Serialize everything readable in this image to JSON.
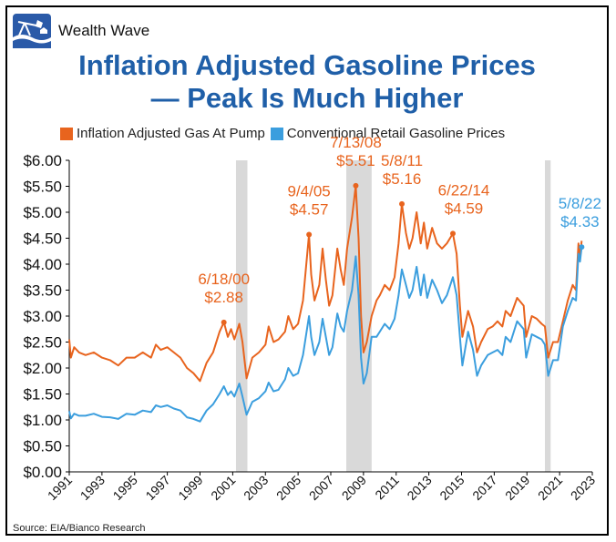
{
  "brand": {
    "name": "Wealth Wave",
    "logo_icon": "oil-pump-logo-icon"
  },
  "header": {
    "title_line1": "Inflation Adjusted Gasoline Prices",
    "title_line2": "— Peak Is Much Higher"
  },
  "source": "Source: EIA/Bianco Research",
  "colors": {
    "adjusted": "#e8641e",
    "conventional": "#3b9ede",
    "title": "#1f5fa8",
    "recession": "#d9d9d9"
  },
  "chart_data": {
    "type": "line",
    "title": "Inflation Adjusted Gasoline Prices — Peak Is Much Higher",
    "xlabel": "",
    "ylabel": "",
    "xlim": [
      1991,
      2023
    ],
    "ylim": [
      0,
      6
    ],
    "x_ticks": [
      "1991",
      "1993",
      "1995",
      "1997",
      "1999",
      "2001",
      "2003",
      "2005",
      "2007",
      "2009",
      "2011",
      "2013",
      "2015",
      "2017",
      "2019",
      "2021",
      "2023"
    ],
    "y_ticks": [
      "$0.00",
      "$0.50",
      "$1.00",
      "$1.50",
      "$2.00",
      "$2.50",
      "$3.00",
      "$3.50",
      "$4.00",
      "$4.50",
      "$5.00",
      "$5.50",
      "$6.00"
    ],
    "grid": false,
    "legend_position": "top",
    "recessions": [
      [
        2001.2,
        2001.9
      ],
      [
        2007.95,
        2009.5
      ],
      [
        2020.1,
        2020.45
      ]
    ],
    "series": [
      {
        "name": "Inflation Adjusted Gas At Pump",
        "color": "#e8641e",
        "points": [
          [
            1991.0,
            2.55
          ],
          [
            1991.1,
            2.2
          ],
          [
            1991.3,
            2.4
          ],
          [
            1991.6,
            2.3
          ],
          [
            1992.0,
            2.25
          ],
          [
            1992.5,
            2.3
          ],
          [
            1993.0,
            2.2
          ],
          [
            1993.5,
            2.15
          ],
          [
            1994.0,
            2.05
          ],
          [
            1994.5,
            2.2
          ],
          [
            1995.0,
            2.2
          ],
          [
            1995.5,
            2.3
          ],
          [
            1996.0,
            2.2
          ],
          [
            1996.3,
            2.45
          ],
          [
            1996.6,
            2.35
          ],
          [
            1997.0,
            2.4
          ],
          [
            1997.4,
            2.3
          ],
          [
            1997.8,
            2.2
          ],
          [
            1998.2,
            2.0
          ],
          [
            1998.6,
            1.9
          ],
          [
            1999.0,
            1.75
          ],
          [
            1999.4,
            2.1
          ],
          [
            1999.8,
            2.3
          ],
          [
            2000.2,
            2.7
          ],
          [
            2000.46,
            2.88
          ],
          [
            2000.7,
            2.6
          ],
          [
            2000.9,
            2.75
          ],
          [
            2001.1,
            2.55
          ],
          [
            2001.4,
            2.85
          ],
          [
            2001.6,
            2.5
          ],
          [
            2001.85,
            1.8
          ],
          [
            2002.2,
            2.2
          ],
          [
            2002.6,
            2.3
          ],
          [
            2003.0,
            2.45
          ],
          [
            2003.2,
            2.8
          ],
          [
            2003.5,
            2.5
          ],
          [
            2003.8,
            2.55
          ],
          [
            2004.2,
            2.7
          ],
          [
            2004.4,
            3.0
          ],
          [
            2004.7,
            2.75
          ],
          [
            2005.0,
            2.85
          ],
          [
            2005.3,
            3.3
          ],
          [
            2005.67,
            4.57
          ],
          [
            2005.8,
            3.8
          ],
          [
            2006.0,
            3.3
          ],
          [
            2006.3,
            3.6
          ],
          [
            2006.5,
            4.3
          ],
          [
            2006.7,
            3.7
          ],
          [
            2006.9,
            3.2
          ],
          [
            2007.1,
            3.4
          ],
          [
            2007.4,
            4.3
          ],
          [
            2007.6,
            3.9
          ],
          [
            2007.8,
            3.6
          ],
          [
            2008.0,
            4.3
          ],
          [
            2008.3,
            4.9
          ],
          [
            2008.53,
            5.51
          ],
          [
            2008.7,
            4.5
          ],
          [
            2008.85,
            3.0
          ],
          [
            2009.0,
            2.3
          ],
          [
            2009.2,
            2.5
          ],
          [
            2009.5,
            3.0
          ],
          [
            2009.8,
            3.3
          ],
          [
            2010.0,
            3.4
          ],
          [
            2010.3,
            3.6
          ],
          [
            2010.6,
            3.5
          ],
          [
            2010.9,
            3.75
          ],
          [
            2011.15,
            4.4
          ],
          [
            2011.35,
            5.16
          ],
          [
            2011.6,
            4.6
          ],
          [
            2011.8,
            4.3
          ],
          [
            2012.0,
            4.5
          ],
          [
            2012.25,
            5.0
          ],
          [
            2012.5,
            4.4
          ],
          [
            2012.7,
            4.8
          ],
          [
            2012.9,
            4.3
          ],
          [
            2013.2,
            4.7
          ],
          [
            2013.5,
            4.4
          ],
          [
            2013.8,
            4.3
          ],
          [
            2014.1,
            4.4
          ],
          [
            2014.47,
            4.59
          ],
          [
            2014.7,
            4.2
          ],
          [
            2014.9,
            3.2
          ],
          [
            2015.05,
            2.6
          ],
          [
            2015.4,
            3.1
          ],
          [
            2015.7,
            2.8
          ],
          [
            2015.95,
            2.3
          ],
          [
            2016.2,
            2.5
          ],
          [
            2016.6,
            2.75
          ],
          [
            2016.9,
            2.8
          ],
          [
            2017.2,
            2.9
          ],
          [
            2017.5,
            2.8
          ],
          [
            2017.7,
            3.1
          ],
          [
            2018.0,
            3.0
          ],
          [
            2018.4,
            3.35
          ],
          [
            2018.8,
            3.2
          ],
          [
            2018.95,
            2.6
          ],
          [
            2019.3,
            3.0
          ],
          [
            2019.6,
            2.95
          ],
          [
            2019.9,
            2.85
          ],
          [
            2020.1,
            2.8
          ],
          [
            2020.3,
            2.2
          ],
          [
            2020.6,
            2.5
          ],
          [
            2020.9,
            2.5
          ],
          [
            2021.2,
            2.9
          ],
          [
            2021.5,
            3.3
          ],
          [
            2021.8,
            3.6
          ],
          [
            2022.0,
            3.5
          ],
          [
            2022.15,
            4.4
          ],
          [
            2022.25,
            4.1
          ],
          [
            2022.35,
            4.45
          ]
        ]
      },
      {
        "name": "Conventional Retail Gasoline Prices",
        "color": "#3b9ede",
        "points": [
          [
            1991.0,
            1.17
          ],
          [
            1991.1,
            1.03
          ],
          [
            1991.3,
            1.12
          ],
          [
            1991.6,
            1.08
          ],
          [
            1992.0,
            1.08
          ],
          [
            1992.5,
            1.12
          ],
          [
            1993.0,
            1.06
          ],
          [
            1993.5,
            1.05
          ],
          [
            1994.0,
            1.02
          ],
          [
            1994.5,
            1.12
          ],
          [
            1995.0,
            1.1
          ],
          [
            1995.5,
            1.18
          ],
          [
            1996.0,
            1.15
          ],
          [
            1996.3,
            1.28
          ],
          [
            1996.6,
            1.25
          ],
          [
            1997.0,
            1.28
          ],
          [
            1997.4,
            1.22
          ],
          [
            1997.8,
            1.18
          ],
          [
            1998.2,
            1.05
          ],
          [
            1998.6,
            1.02
          ],
          [
            1999.0,
            0.97
          ],
          [
            1999.4,
            1.18
          ],
          [
            1999.8,
            1.3
          ],
          [
            2000.2,
            1.5
          ],
          [
            2000.46,
            1.65
          ],
          [
            2000.7,
            1.48
          ],
          [
            2000.9,
            1.55
          ],
          [
            2001.1,
            1.45
          ],
          [
            2001.4,
            1.7
          ],
          [
            2001.6,
            1.45
          ],
          [
            2001.85,
            1.1
          ],
          [
            2002.2,
            1.35
          ],
          [
            2002.6,
            1.42
          ],
          [
            2003.0,
            1.55
          ],
          [
            2003.2,
            1.72
          ],
          [
            2003.5,
            1.55
          ],
          [
            2003.8,
            1.58
          ],
          [
            2004.2,
            1.78
          ],
          [
            2004.4,
            2.0
          ],
          [
            2004.7,
            1.85
          ],
          [
            2005.0,
            1.9
          ],
          [
            2005.3,
            2.25
          ],
          [
            2005.67,
            3.0
          ],
          [
            2005.8,
            2.6
          ],
          [
            2006.0,
            2.25
          ],
          [
            2006.3,
            2.5
          ],
          [
            2006.5,
            2.95
          ],
          [
            2006.7,
            2.6
          ],
          [
            2006.9,
            2.25
          ],
          [
            2007.1,
            2.4
          ],
          [
            2007.4,
            3.05
          ],
          [
            2007.6,
            2.8
          ],
          [
            2007.8,
            2.7
          ],
          [
            2008.0,
            3.1
          ],
          [
            2008.3,
            3.5
          ],
          [
            2008.53,
            4.15
          ],
          [
            2008.7,
            3.4
          ],
          [
            2008.85,
            2.2
          ],
          [
            2009.0,
            1.7
          ],
          [
            2009.2,
            1.9
          ],
          [
            2009.5,
            2.6
          ],
          [
            2009.8,
            2.6
          ],
          [
            2010.0,
            2.7
          ],
          [
            2010.3,
            2.85
          ],
          [
            2010.6,
            2.75
          ],
          [
            2010.9,
            2.95
          ],
          [
            2011.15,
            3.4
          ],
          [
            2011.35,
            3.9
          ],
          [
            2011.6,
            3.6
          ],
          [
            2011.8,
            3.35
          ],
          [
            2012.0,
            3.5
          ],
          [
            2012.25,
            3.95
          ],
          [
            2012.5,
            3.4
          ],
          [
            2012.7,
            3.8
          ],
          [
            2012.9,
            3.35
          ],
          [
            2013.2,
            3.7
          ],
          [
            2013.5,
            3.5
          ],
          [
            2013.8,
            3.25
          ],
          [
            2014.1,
            3.4
          ],
          [
            2014.47,
            3.75
          ],
          [
            2014.7,
            3.4
          ],
          [
            2014.9,
            2.6
          ],
          [
            2015.05,
            2.05
          ],
          [
            2015.4,
            2.7
          ],
          [
            2015.7,
            2.35
          ],
          [
            2015.95,
            1.85
          ],
          [
            2016.2,
            2.05
          ],
          [
            2016.6,
            2.25
          ],
          [
            2016.9,
            2.3
          ],
          [
            2017.2,
            2.35
          ],
          [
            2017.5,
            2.25
          ],
          [
            2017.7,
            2.6
          ],
          [
            2018.0,
            2.5
          ],
          [
            2018.4,
            2.9
          ],
          [
            2018.8,
            2.75
          ],
          [
            2018.95,
            2.2
          ],
          [
            2019.3,
            2.65
          ],
          [
            2019.6,
            2.6
          ],
          [
            2019.9,
            2.55
          ],
          [
            2020.1,
            2.45
          ],
          [
            2020.3,
            1.85
          ],
          [
            2020.6,
            2.15
          ],
          [
            2020.9,
            2.15
          ],
          [
            2021.2,
            2.8
          ],
          [
            2021.5,
            3.1
          ],
          [
            2021.8,
            3.35
          ],
          [
            2022.0,
            3.3
          ],
          [
            2022.15,
            4.2
          ],
          [
            2022.25,
            4.05
          ],
          [
            2022.35,
            4.33
          ]
        ]
      }
    ],
    "annotations": [
      {
        "date": "6/18/00",
        "value": "$2.88",
        "x": 2000.46,
        "y": 2.88,
        "series": 0
      },
      {
        "date": "9/4/05",
        "value": "$4.57",
        "x": 2005.67,
        "y": 4.57,
        "series": 0
      },
      {
        "date": "7/13/08",
        "value": "$5.51",
        "x": 2008.53,
        "y": 5.51,
        "series": 0
      },
      {
        "date": "5/8/11",
        "value": "$5.16",
        "x": 2011.35,
        "y": 5.16,
        "series": 0
      },
      {
        "date": "6/22/14",
        "value": "$4.59",
        "x": 2014.47,
        "y": 4.59,
        "series": 0
      },
      {
        "date": "5/8/22",
        "value": "$4.33",
        "x": 2022.35,
        "y": 4.33,
        "series": 1
      }
    ]
  }
}
